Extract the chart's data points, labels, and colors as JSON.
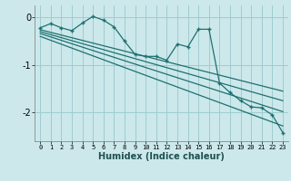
{
  "background_color": "#cce8eb",
  "grid_color": "#9ecdd1",
  "line_color": "#1e7070",
  "xlabel": "Humidex (Indice chaleur)",
  "ylim": [
    -2.6,
    0.25
  ],
  "xlim": [
    -0.5,
    23.5
  ],
  "yticks": [
    0,
    -1,
    -2
  ],
  "curve1_x": [
    0,
    1,
    2,
    3,
    4,
    5,
    6,
    7,
    8,
    9,
    10,
    11,
    12,
    13,
    14,
    15,
    16,
    17,
    18,
    19,
    20,
    21,
    22,
    23
  ],
  "curve1_y": [
    -0.22,
    -0.13,
    -0.22,
    -0.28,
    -0.12,
    0.02,
    -0.06,
    -0.2,
    -0.5,
    -0.78,
    -0.82,
    -0.82,
    -0.9,
    -0.56,
    -0.62,
    -0.25,
    -0.25,
    -1.38,
    -1.58,
    -1.75,
    -1.88,
    -1.9,
    -2.05,
    -2.42
  ],
  "line1_x": [
    0,
    23
  ],
  "line1_y": [
    -0.26,
    -1.55
  ],
  "line2_x": [
    0,
    23
  ],
  "line2_y": [
    -0.3,
    -1.75
  ],
  "line3_x": [
    0,
    23
  ],
  "line3_y": [
    -0.34,
    -1.98
  ],
  "line4_x": [
    0,
    23
  ],
  "line4_y": [
    -0.4,
    -2.28
  ]
}
